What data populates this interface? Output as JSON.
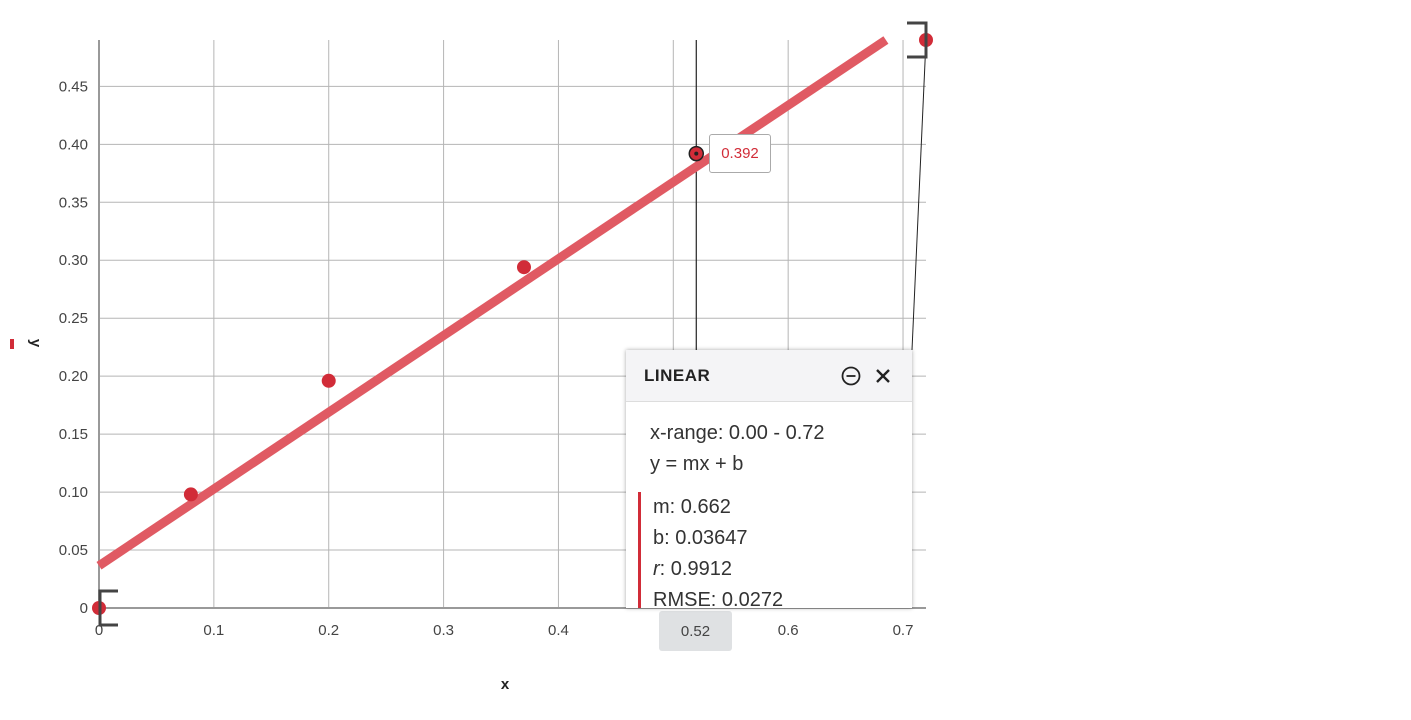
{
  "chart_data": {
    "type": "scatter",
    "xlabel": "x",
    "ylabel": "y",
    "xlim": [
      0,
      0.72
    ],
    "ylim": [
      0,
      0.49
    ],
    "x_ticks": [
      "0",
      "0.1",
      "0.2",
      "0.3",
      "0.4",
      "0.6",
      "0.7"
    ],
    "x_tick_values": [
      0,
      0.1,
      0.2,
      0.3,
      0.4,
      0.6,
      0.7
    ],
    "y_ticks": [
      "0",
      "0.05",
      "0.10",
      "0.15",
      "0.20",
      "0.25",
      "0.30",
      "0.35",
      "0.40",
      "0.45"
    ],
    "y_tick_values": [
      0,
      0.05,
      0.1,
      0.15,
      0.2,
      0.25,
      0.3,
      0.35,
      0.4,
      0.45
    ],
    "grid": true,
    "points": [
      {
        "x": 0.0,
        "y": 0.0
      },
      {
        "x": 0.08,
        "y": 0.098
      },
      {
        "x": 0.2,
        "y": 0.196
      },
      {
        "x": 0.37,
        "y": 0.294
      },
      {
        "x": 0.52,
        "y": 0.392
      },
      {
        "x": 0.72,
        "y": 0.49
      }
    ],
    "fit": {
      "type": "linear",
      "m": 0.662,
      "b": 0.03647
    },
    "point_color": "#d12c38",
    "fit_color": "#e05a63",
    "cursor_x": 0.52,
    "cursor_x_label": "0.52",
    "tooltip_value": "0.392"
  },
  "panel": {
    "title": "LINEAR",
    "x_range": "x-range: 0.00 - 0.72",
    "equation": "y = mx + b",
    "m": "m: 0.662",
    "b": "b: 0.03647",
    "r_label": "r",
    "r_value": ": 0.9912",
    "rmse": "RMSE: 0.0272",
    "minimize_icon": "minus-circle-icon",
    "close_icon": "close-icon"
  }
}
